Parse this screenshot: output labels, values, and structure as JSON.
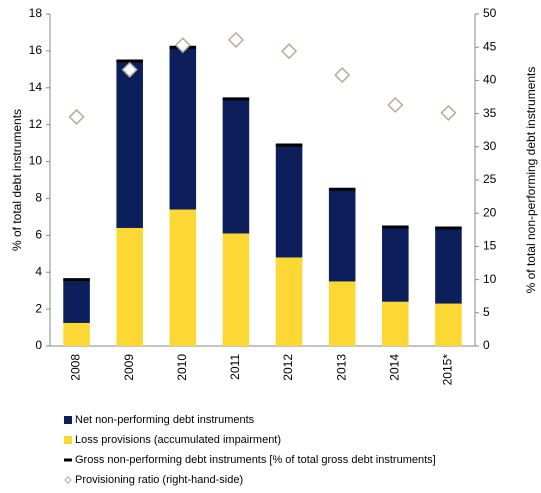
{
  "chart_data": {
    "type": "bar",
    "stacked": true,
    "categories": [
      "2008",
      "2009",
      "2010",
      "2011",
      "2012",
      "2013",
      "2014",
      "2015*"
    ],
    "ylabel": "% of total debt instruments",
    "y2label": "% of total non-performing debt instruments",
    "ylim": [
      0,
      18
    ],
    "yticks": [
      0,
      2,
      4,
      6,
      8,
      10,
      12,
      14,
      16,
      18
    ],
    "y2lim": [
      0,
      50
    ],
    "y2ticks": [
      0,
      5,
      10,
      15,
      20,
      25,
      30,
      35,
      40,
      45,
      50
    ],
    "series": [
      {
        "name": "Net non-performing debt instruments",
        "color": "#0c1f5c",
        "style": "bar",
        "values": [
          2.35,
          9.05,
          8.8,
          7.3,
          6.1,
          5.0,
          4.05,
          4.1
        ]
      },
      {
        "name": "Loss provisions (accumulated impairment)",
        "color": "#fdd835",
        "style": "bar",
        "values": [
          1.25,
          6.4,
          7.4,
          6.1,
          4.8,
          3.5,
          2.4,
          2.3
        ]
      },
      {
        "name": "Gross non-performing debt instruments [% of total gross debt instruments]",
        "color": "#000000",
        "style": "dash",
        "values": [
          3.6,
          15.45,
          16.2,
          13.4,
          10.9,
          8.5,
          6.45,
          6.4
        ]
      },
      {
        "name": "Provisioning ratio (right-hand-side)",
        "color": "#b8aa9c",
        "style": "diamond",
        "axis": "y2",
        "values": [
          34.5,
          41.6,
          45.3,
          46.1,
          44.4,
          40.8,
          36.3,
          35.1
        ]
      }
    ]
  }
}
